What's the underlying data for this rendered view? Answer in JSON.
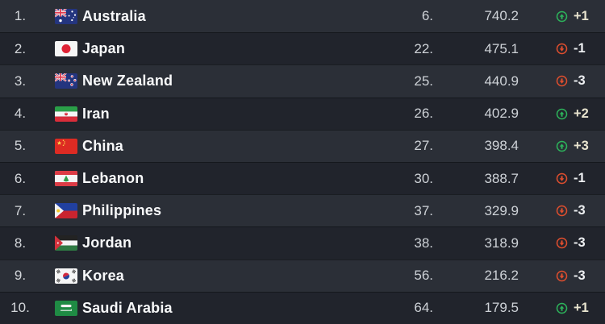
{
  "colors": {
    "up_green": "#2db35b",
    "down_red": "#df4e2e",
    "row_light": "#2b2f37",
    "row_dark": "#21242c"
  },
  "table": {
    "rows": [
      {
        "position": "1.",
        "flag": "au",
        "country": "Australia",
        "world_rank": "6.",
        "points": "740.2",
        "change": "+1",
        "direction": "up"
      },
      {
        "position": "2.",
        "flag": "jp",
        "country": "Japan",
        "world_rank": "22.",
        "points": "475.1",
        "change": "-1",
        "direction": "down"
      },
      {
        "position": "3.",
        "flag": "nz",
        "country": "New Zealand",
        "world_rank": "25.",
        "points": "440.9",
        "change": "-3",
        "direction": "down"
      },
      {
        "position": "4.",
        "flag": "ir",
        "country": "Iran",
        "world_rank": "26.",
        "points": "402.9",
        "change": "+2",
        "direction": "up"
      },
      {
        "position": "5.",
        "flag": "cn",
        "country": "China",
        "world_rank": "27.",
        "points": "398.4",
        "change": "+3",
        "direction": "up"
      },
      {
        "position": "6.",
        "flag": "lb",
        "country": "Lebanon",
        "world_rank": "30.",
        "points": "388.7",
        "change": "-1",
        "direction": "down"
      },
      {
        "position": "7.",
        "flag": "ph",
        "country": "Philippines",
        "world_rank": "37.",
        "points": "329.9",
        "change": "-3",
        "direction": "down"
      },
      {
        "position": "8.",
        "flag": "jo",
        "country": "Jordan",
        "world_rank": "38.",
        "points": "318.9",
        "change": "-3",
        "direction": "down"
      },
      {
        "position": "9.",
        "flag": "kr",
        "country": "Korea",
        "world_rank": "56.",
        "points": "216.2",
        "change": "-3",
        "direction": "down"
      },
      {
        "position": "10.",
        "flag": "sa",
        "country": "Saudi Arabia",
        "world_rank": "64.",
        "points": "179.5",
        "change": "+1",
        "direction": "up"
      }
    ]
  }
}
